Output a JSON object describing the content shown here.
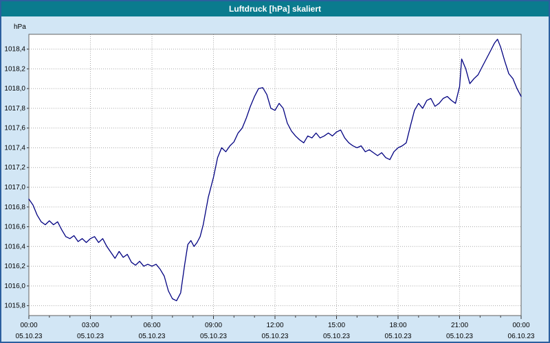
{
  "window": {
    "title": "Luftdruck [hPa] skaliert",
    "titlebar_color": "#0a7b8e",
    "background_color": "#d2e6f5",
    "border_color": "#2b5f9e"
  },
  "chart_data": {
    "type": "line",
    "title": "Luftdruck [hPa] skaliert",
    "y_unit_label": "hPa",
    "ylabel": "hPa",
    "xlabel": "",
    "grid": true,
    "grid_color": "#a8a8a8",
    "plot_background": "#ffffff",
    "plot_border_color": "#606060",
    "line_color": "#000080",
    "ylim": [
      1015.7,
      1018.55
    ],
    "xlim": [
      0,
      24
    ],
    "yticks": [
      {
        "value": 1015.8,
        "label": "1015,8"
      },
      {
        "value": 1016.0,
        "label": "1016,0"
      },
      {
        "value": 1016.2,
        "label": "1016,2"
      },
      {
        "value": 1016.4,
        "label": "1016,4"
      },
      {
        "value": 1016.6,
        "label": "1016,6"
      },
      {
        "value": 1016.8,
        "label": "1016,8"
      },
      {
        "value": 1017.0,
        "label": "1017,0"
      },
      {
        "value": 1017.2,
        "label": "1017,2"
      },
      {
        "value": 1017.4,
        "label": "1017,4"
      },
      {
        "value": 1017.6,
        "label": "1017,6"
      },
      {
        "value": 1017.8,
        "label": "1017,8"
      },
      {
        "value": 1018.0,
        "label": "1018,0"
      },
      {
        "value": 1018.2,
        "label": "1018,2"
      },
      {
        "value": 1018.4,
        "label": "1018,4"
      }
    ],
    "xticks": [
      {
        "hour": 0,
        "label": "00:00",
        "date": "05.10.23"
      },
      {
        "hour": 3,
        "label": "03:00",
        "date": "05.10.23"
      },
      {
        "hour": 6,
        "label": "06:00",
        "date": "05.10.23"
      },
      {
        "hour": 9,
        "label": "09:00",
        "date": "05.10.23"
      },
      {
        "hour": 12,
        "label": "12:00",
        "date": "05.10.23"
      },
      {
        "hour": 15,
        "label": "15:00",
        "date": "05.10.23"
      },
      {
        "hour": 18,
        "label": "18:00",
        "date": "05.10.23"
      },
      {
        "hour": 21,
        "label": "21:00",
        "date": "05.10.23"
      },
      {
        "hour": 24,
        "label": "00:00",
        "date": "06.10.23"
      }
    ],
    "series": [
      {
        "name": "Luftdruck",
        "points": [
          [
            0,
            1016.88
          ],
          [
            0.2,
            1016.82
          ],
          [
            0.4,
            1016.72
          ],
          [
            0.6,
            1016.65
          ],
          [
            0.8,
            1016.62
          ],
          [
            1,
            1016.66
          ],
          [
            1.2,
            1016.62
          ],
          [
            1.4,
            1016.65
          ],
          [
            1.6,
            1016.57
          ],
          [
            1.8,
            1016.5
          ],
          [
            2,
            1016.48
          ],
          [
            2.2,
            1016.51
          ],
          [
            2.4,
            1016.45
          ],
          [
            2.6,
            1016.48
          ],
          [
            2.8,
            1016.44
          ],
          [
            3,
            1016.48
          ],
          [
            3.2,
            1016.5
          ],
          [
            3.4,
            1016.44
          ],
          [
            3.6,
            1016.48
          ],
          [
            3.8,
            1016.4
          ],
          [
            4,
            1016.34
          ],
          [
            4.2,
            1016.28
          ],
          [
            4.4,
            1016.35
          ],
          [
            4.6,
            1016.29
          ],
          [
            4.8,
            1016.32
          ],
          [
            5,
            1016.24
          ],
          [
            5.2,
            1016.21
          ],
          [
            5.4,
            1016.25
          ],
          [
            5.6,
            1016.2
          ],
          [
            5.8,
            1016.22
          ],
          [
            6,
            1016.2
          ],
          [
            6.2,
            1016.22
          ],
          [
            6.4,
            1016.17
          ],
          [
            6.6,
            1016.1
          ],
          [
            6.8,
            1015.95
          ],
          [
            7,
            1015.87
          ],
          [
            7.2,
            1015.85
          ],
          [
            7.4,
            1015.93
          ],
          [
            7.6,
            1016.22
          ],
          [
            7.75,
            1016.42
          ],
          [
            7.9,
            1016.46
          ],
          [
            8.05,
            1016.4
          ],
          [
            8.2,
            1016.44
          ],
          [
            8.35,
            1016.5
          ],
          [
            8.5,
            1016.62
          ],
          [
            8.75,
            1016.9
          ],
          [
            9,
            1017.1
          ],
          [
            9.2,
            1017.3
          ],
          [
            9.4,
            1017.4
          ],
          [
            9.6,
            1017.36
          ],
          [
            9.8,
            1017.42
          ],
          [
            10,
            1017.46
          ],
          [
            10.2,
            1017.55
          ],
          [
            10.4,
            1017.6
          ],
          [
            10.6,
            1017.7
          ],
          [
            10.8,
            1017.82
          ],
          [
            11,
            1017.92
          ],
          [
            11.2,
            1018.0
          ],
          [
            11.4,
            1018.01
          ],
          [
            11.6,
            1017.94
          ],
          [
            11.8,
            1017.8
          ],
          [
            12,
            1017.78
          ],
          [
            12.2,
            1017.85
          ],
          [
            12.4,
            1017.8
          ],
          [
            12.6,
            1017.65
          ],
          [
            12.8,
            1017.57
          ],
          [
            13,
            1017.52
          ],
          [
            13.2,
            1017.48
          ],
          [
            13.4,
            1017.45
          ],
          [
            13.6,
            1017.52
          ],
          [
            13.8,
            1017.5
          ],
          [
            14,
            1017.55
          ],
          [
            14.2,
            1017.5
          ],
          [
            14.4,
            1017.52
          ],
          [
            14.6,
            1017.55
          ],
          [
            14.8,
            1017.52
          ],
          [
            15,
            1017.56
          ],
          [
            15.2,
            1017.58
          ],
          [
            15.4,
            1017.5
          ],
          [
            15.6,
            1017.45
          ],
          [
            15.8,
            1017.42
          ],
          [
            16,
            1017.4
          ],
          [
            16.2,
            1017.42
          ],
          [
            16.4,
            1017.36
          ],
          [
            16.6,
            1017.38
          ],
          [
            16.8,
            1017.35
          ],
          [
            17,
            1017.32
          ],
          [
            17.2,
            1017.35
          ],
          [
            17.4,
            1017.3
          ],
          [
            17.6,
            1017.28
          ],
          [
            17.8,
            1017.36
          ],
          [
            18,
            1017.4
          ],
          [
            18.2,
            1017.42
          ],
          [
            18.4,
            1017.45
          ],
          [
            18.6,
            1017.62
          ],
          [
            18.8,
            1017.78
          ],
          [
            19,
            1017.85
          ],
          [
            19.2,
            1017.8
          ],
          [
            19.4,
            1017.88
          ],
          [
            19.6,
            1017.9
          ],
          [
            19.8,
            1017.82
          ],
          [
            20,
            1017.85
          ],
          [
            20.2,
            1017.9
          ],
          [
            20.4,
            1017.92
          ],
          [
            20.6,
            1017.88
          ],
          [
            20.8,
            1017.85
          ],
          [
            21,
            1018.02
          ],
          [
            21.1,
            1018.3
          ],
          [
            21.3,
            1018.2
          ],
          [
            21.5,
            1018.05
          ],
          [
            21.7,
            1018.1
          ],
          [
            21.9,
            1018.14
          ],
          [
            22.1,
            1018.22
          ],
          [
            22.3,
            1018.3
          ],
          [
            22.5,
            1018.38
          ],
          [
            22.7,
            1018.46
          ],
          [
            22.85,
            1018.5
          ],
          [
            23,
            1018.42
          ],
          [
            23.2,
            1018.28
          ],
          [
            23.4,
            1018.15
          ],
          [
            23.6,
            1018.1
          ],
          [
            23.8,
            1018.0
          ],
          [
            24,
            1017.92
          ]
        ]
      }
    ],
    "legend_position": "none"
  }
}
